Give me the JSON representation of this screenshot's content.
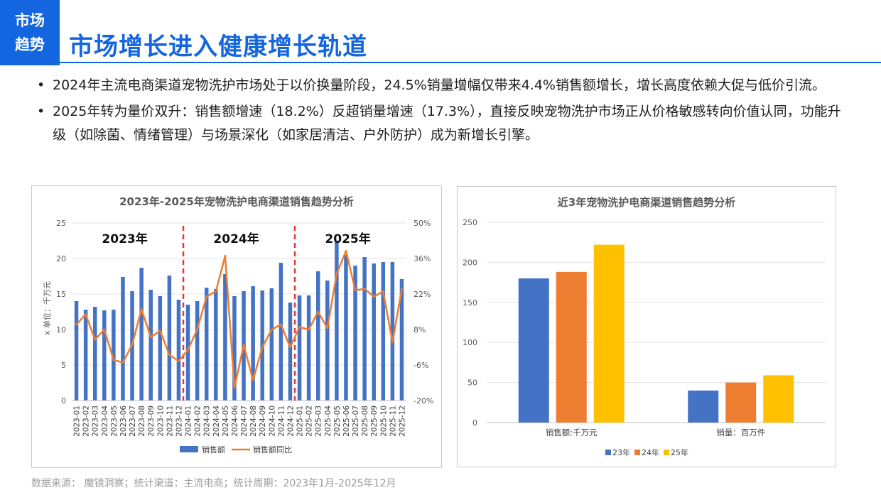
{
  "header": {
    "tag_line1": "市场",
    "tag_line2": "趋势",
    "title": "市场增长进入健康增长轨道"
  },
  "bullets": [
    "2024年主流电商渠道宠物洗护市场处于以价换量阶段，24.5%销量增幅仅带来4.4%销售额增长，增长高度依赖大促与低价引流。",
    "2025年转为量价双升：销售额增速（18.2%）反超销量增速（17.3%），直接反映宠物洗护市场正从价格敏感转向价值认同，功能升级（如除菌、情绪管理）与场景深化（如家居清洁、户外防护）成为新增长引擎。"
  ],
  "bullet_symbol": "•",
  "footer": "数据来源： 魔镜洞察；统计渠道：主流电商；统计周期：2023年1月-2025年12月",
  "colors": {
    "accent": "#1466e0",
    "bar_blue": "#4472c4",
    "line_orange": "#ed7d31",
    "year_gold": "#ffc000",
    "divider_red": "#e53935"
  },
  "chart_data": [
    {
      "type": "bar",
      "title": "2023年-2025年宠物洗护电商渠道销售趋势分析",
      "ylabel": "x 单位：千万元",
      "ylim": [
        0,
        25
      ],
      "y_ticks": [
        "0",
        "5",
        "10",
        "15",
        "20",
        "25"
      ],
      "y2lim": [
        -20,
        50
      ],
      "y2_ticks": [
        "-20%",
        "-6%",
        "8%",
        "22%",
        "36%",
        "50%"
      ],
      "year_labels": [
        "2023年",
        "2024年",
        "2025年"
      ],
      "categories": [
        "2023-01",
        "2023-02",
        "2023-03",
        "2023-04",
        "2023-05",
        "2023-06",
        "2023-07",
        "2023-08",
        "2023-09",
        "2023-10",
        "2023-11",
        "2023-12",
        "2024-01",
        "2024-02",
        "2024-03",
        "2024-04",
        "2024-05",
        "2024-06",
        "2024-07",
        "2024-08",
        "2024-09",
        "2024-10",
        "2024-11",
        "2024-12",
        "2025-01",
        "2025-02",
        "2025-03",
        "2025-04",
        "2025-05",
        "2025-06",
        "2025-07",
        "2025-08",
        "2025-09",
        "2025-10",
        "2025-11",
        "2025-12"
      ],
      "series": [
        {
          "name": "销售额",
          "type": "bar",
          "axis": "left",
          "values": [
            14.0,
            12.8,
            13.2,
            12.7,
            12.8,
            17.4,
            15.4,
            18.7,
            15.6,
            14.7,
            17.6,
            14.2,
            13.5,
            14.0,
            15.9,
            15.7,
            17.8,
            14.7,
            15.4,
            16.1,
            15.5,
            15.8,
            19.4,
            13.8,
            14.8,
            14.8,
            18.2,
            16.9,
            22.5,
            20.5,
            19.0,
            20.2,
            19.3,
            19.5,
            19.5,
            17.1
          ]
        },
        {
          "name": "销售额同比",
          "type": "line",
          "axis": "right",
          "values": [
            10.0,
            14.0,
            4.0,
            8.0,
            -4.0,
            -5.0,
            2.0,
            16.0,
            5.0,
            7.5,
            -2.0,
            -4.5,
            0.0,
            8.0,
            21.0,
            23.0,
            37.0,
            -15.0,
            2.0,
            -12.0,
            1.0,
            8.0,
            10.0,
            1.0,
            9.0,
            8.0,
            15.0,
            8.5,
            30.0,
            39.0,
            23.5,
            24.0,
            21.0,
            23.0,
            3.0,
            24.0
          ]
        }
      ],
      "legend": "bottom"
    },
    {
      "type": "bar",
      "title": "近3年宠物洗护电商渠道销售趋势分析",
      "categories": [
        "销售额:千万元",
        "销量：百万件"
      ],
      "ylim": [
        0,
        250
      ],
      "y_ticks": [
        "0",
        "50",
        "100",
        "150",
        "200",
        "250"
      ],
      "series": [
        {
          "name": "23年",
          "values": [
            180,
            40
          ]
        },
        {
          "name": "24年",
          "values": [
            188,
            50
          ]
        },
        {
          "name": "25年",
          "values": [
            222,
            59
          ]
        }
      ],
      "legend": "bottom"
    }
  ]
}
